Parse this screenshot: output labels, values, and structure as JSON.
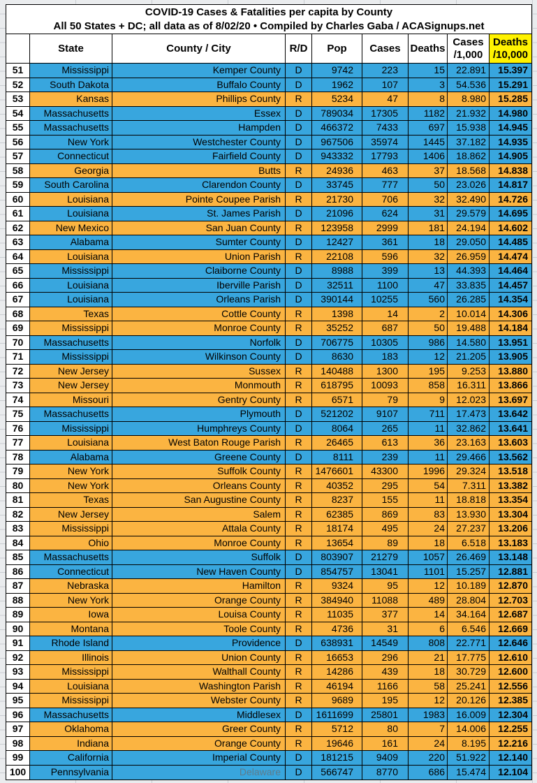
{
  "title": {
    "line1": "COVID-19 Cases & Fatalities per capita by County",
    "line2": "All 50 States + DC; all data as of 8/02/20  • Compiled by Charles Gaba / ACASignups.net"
  },
  "header": {
    "rank": "",
    "state": "State",
    "county": "County / City",
    "rd": "R/D",
    "pop": "Pop",
    "cases": "Cases",
    "cases_rate_line1": "Cases",
    "cases_rate_line2": "/1,000",
    "deaths": "Deaths",
    "deaths_rate_line1": "Deaths",
    "deaths_rate_line2": "/10,000"
  },
  "colors": {
    "democrat_row": "#38A6DE",
    "republican_row": "#FBB441",
    "header_highlight": "#FFF200",
    "muted_county_text": "#5E7B8B"
  },
  "chart_data": {
    "type": "table",
    "title": "COVID-19 Cases & Fatalities per capita by County",
    "subtitle": "All 50 States + DC; all data as of 8/02/20 • Compiled by Charles Gaba / ACASignups.net",
    "columns": [
      "Rank",
      "State",
      "County / City",
      "R/D",
      "Pop",
      "Cases",
      "Deaths",
      "Cases /1,000",
      "Deaths /10,000"
    ],
    "rows": [
      {
        "rank": 51,
        "state": "Mississippi",
        "county": "Kemper County",
        "party": "D",
        "pop": 9742,
        "cases": 223,
        "deaths": 15,
        "cases_per_1000": "22.891",
        "deaths_per_10000": "15.397"
      },
      {
        "rank": 52,
        "state": "South Dakota",
        "county": "Buffalo County",
        "party": "D",
        "pop": 1962,
        "cases": 107,
        "deaths": 3,
        "cases_per_1000": "54.536",
        "deaths_per_10000": "15.291"
      },
      {
        "rank": 53,
        "state": "Kansas",
        "county": "Phillips County",
        "party": "R",
        "pop": 5234,
        "cases": 47,
        "deaths": 8,
        "cases_per_1000": "8.980",
        "deaths_per_10000": "15.285"
      },
      {
        "rank": 54,
        "state": "Massachusetts",
        "county": "Essex",
        "party": "D",
        "pop": 789034,
        "cases": 17305,
        "deaths": 1182,
        "cases_per_1000": "21.932",
        "deaths_per_10000": "14.980"
      },
      {
        "rank": 55,
        "state": "Massachusetts",
        "county": "Hampden",
        "party": "D",
        "pop": 466372,
        "cases": 7433,
        "deaths": 697,
        "cases_per_1000": "15.938",
        "deaths_per_10000": "14.945"
      },
      {
        "rank": 56,
        "state": "New York",
        "county": "Westchester County",
        "party": "D",
        "pop": 967506,
        "cases": 35974,
        "deaths": 1445,
        "cases_per_1000": "37.182",
        "deaths_per_10000": "14.935"
      },
      {
        "rank": 57,
        "state": "Connecticut",
        "county": "Fairfield County",
        "party": "D",
        "pop": 943332,
        "cases": 17793,
        "deaths": 1406,
        "cases_per_1000": "18.862",
        "deaths_per_10000": "14.905"
      },
      {
        "rank": 58,
        "state": "Georgia",
        "county": "Butts",
        "party": "R",
        "pop": 24936,
        "cases": 463,
        "deaths": 37,
        "cases_per_1000": "18.568",
        "deaths_per_10000": "14.838"
      },
      {
        "rank": 59,
        "state": "South Carolina",
        "county": "Clarendon County",
        "party": "D",
        "pop": 33745,
        "cases": 777,
        "deaths": 50,
        "cases_per_1000": "23.026",
        "deaths_per_10000": "14.817"
      },
      {
        "rank": 60,
        "state": "Louisiana",
        "county": "Pointe Coupee Parish",
        "party": "R",
        "pop": 21730,
        "cases": 706,
        "deaths": 32,
        "cases_per_1000": "32.490",
        "deaths_per_10000": "14.726"
      },
      {
        "rank": 61,
        "state": "Louisiana",
        "county": "St. James Parish",
        "party": "D",
        "pop": 21096,
        "cases": 624,
        "deaths": 31,
        "cases_per_1000": "29.579",
        "deaths_per_10000": "14.695"
      },
      {
        "rank": 62,
        "state": "New Mexico",
        "county": "San Juan County",
        "party": "R",
        "pop": 123958,
        "cases": 2999,
        "deaths": 181,
        "cases_per_1000": "24.194",
        "deaths_per_10000": "14.602"
      },
      {
        "rank": 63,
        "state": "Alabama",
        "county": "Sumter County",
        "party": "D",
        "pop": 12427,
        "cases": 361,
        "deaths": 18,
        "cases_per_1000": "29.050",
        "deaths_per_10000": "14.485"
      },
      {
        "rank": 64,
        "state": "Louisiana",
        "county": "Union Parish",
        "party": "R",
        "pop": 22108,
        "cases": 596,
        "deaths": 32,
        "cases_per_1000": "26.959",
        "deaths_per_10000": "14.474"
      },
      {
        "rank": 65,
        "state": "Mississippi",
        "county": "Claiborne County",
        "party": "D",
        "pop": 8988,
        "cases": 399,
        "deaths": 13,
        "cases_per_1000": "44.393",
        "deaths_per_10000": "14.464"
      },
      {
        "rank": 66,
        "state": "Louisiana",
        "county": "Iberville Parish",
        "party": "D",
        "pop": 32511,
        "cases": 1100,
        "deaths": 47,
        "cases_per_1000": "33.835",
        "deaths_per_10000": "14.457"
      },
      {
        "rank": 67,
        "state": "Louisiana",
        "county": "Orleans Parish",
        "party": "D",
        "pop": 390144,
        "cases": 10255,
        "deaths": 560,
        "cases_per_1000": "26.285",
        "deaths_per_10000": "14.354"
      },
      {
        "rank": 68,
        "state": "Texas",
        "county": "Cottle County",
        "party": "R",
        "pop": 1398,
        "cases": 14,
        "deaths": 2,
        "cases_per_1000": "10.014",
        "deaths_per_10000": "14.306"
      },
      {
        "rank": 69,
        "state": "Mississippi",
        "county": "Monroe County",
        "party": "R",
        "pop": 35252,
        "cases": 687,
        "deaths": 50,
        "cases_per_1000": "19.488",
        "deaths_per_10000": "14.184"
      },
      {
        "rank": 70,
        "state": "Massachusetts",
        "county": "Norfolk",
        "party": "D",
        "pop": 706775,
        "cases": 10305,
        "deaths": 986,
        "cases_per_1000": "14.580",
        "deaths_per_10000": "13.951"
      },
      {
        "rank": 71,
        "state": "Mississippi",
        "county": "Wilkinson County",
        "party": "D",
        "pop": 8630,
        "cases": 183,
        "deaths": 12,
        "cases_per_1000": "21.205",
        "deaths_per_10000": "13.905"
      },
      {
        "rank": 72,
        "state": "New Jersey",
        "county": "Sussex",
        "party": "R",
        "pop": 140488,
        "cases": 1300,
        "deaths": 195,
        "cases_per_1000": "9.253",
        "deaths_per_10000": "13.880"
      },
      {
        "rank": 73,
        "state": "New Jersey",
        "county": "Monmouth",
        "party": "R",
        "pop": 618795,
        "cases": 10093,
        "deaths": 858,
        "cases_per_1000": "16.311",
        "deaths_per_10000": "13.866"
      },
      {
        "rank": 74,
        "state": "Missouri",
        "county": "Gentry County",
        "party": "R",
        "pop": 6571,
        "cases": 79,
        "deaths": 9,
        "cases_per_1000": "12.023",
        "deaths_per_10000": "13.697"
      },
      {
        "rank": 75,
        "state": "Massachusetts",
        "county": "Plymouth",
        "party": "D",
        "pop": 521202,
        "cases": 9107,
        "deaths": 711,
        "cases_per_1000": "17.473",
        "deaths_per_10000": "13.642"
      },
      {
        "rank": 76,
        "state": "Mississippi",
        "county": "Humphreys County",
        "party": "D",
        "pop": 8064,
        "cases": 265,
        "deaths": 11,
        "cases_per_1000": "32.862",
        "deaths_per_10000": "13.641"
      },
      {
        "rank": 77,
        "state": "Louisiana",
        "county": "West Baton Rouge Parish",
        "party": "R",
        "pop": 26465,
        "cases": 613,
        "deaths": 36,
        "cases_per_1000": "23.163",
        "deaths_per_10000": "13.603"
      },
      {
        "rank": 78,
        "state": "Alabama",
        "county": "Greene County",
        "party": "D",
        "pop": 8111,
        "cases": 239,
        "deaths": 11,
        "cases_per_1000": "29.466",
        "deaths_per_10000": "13.562"
      },
      {
        "rank": 79,
        "state": "New York",
        "county": "Suffolk County",
        "party": "R",
        "pop": 1476601,
        "cases": 43300,
        "deaths": 1996,
        "cases_per_1000": "29.324",
        "deaths_per_10000": "13.518"
      },
      {
        "rank": 80,
        "state": "New York",
        "county": "Orleans County",
        "party": "R",
        "pop": 40352,
        "cases": 295,
        "deaths": 54,
        "cases_per_1000": "7.311",
        "deaths_per_10000": "13.382"
      },
      {
        "rank": 81,
        "state": "Texas",
        "county": "San Augustine County",
        "party": "R",
        "pop": 8237,
        "cases": 155,
        "deaths": 11,
        "cases_per_1000": "18.818",
        "deaths_per_10000": "13.354"
      },
      {
        "rank": 82,
        "state": "New Jersey",
        "county": "Salem",
        "party": "R",
        "pop": 62385,
        "cases": 869,
        "deaths": 83,
        "cases_per_1000": "13.930",
        "deaths_per_10000": "13.304"
      },
      {
        "rank": 83,
        "state": "Mississippi",
        "county": "Attala County",
        "party": "R",
        "pop": 18174,
        "cases": 495,
        "deaths": 24,
        "cases_per_1000": "27.237",
        "deaths_per_10000": "13.206"
      },
      {
        "rank": 84,
        "state": "Ohio",
        "county": "Monroe County",
        "party": "R",
        "pop": 13654,
        "cases": 89,
        "deaths": 18,
        "cases_per_1000": "6.518",
        "deaths_per_10000": "13.183"
      },
      {
        "rank": 85,
        "state": "Massachusetts",
        "county": "Suffolk",
        "party": "D",
        "pop": 803907,
        "cases": 21279,
        "deaths": 1057,
        "cases_per_1000": "26.469",
        "deaths_per_10000": "13.148"
      },
      {
        "rank": 86,
        "state": "Connecticut",
        "county": "New Haven County",
        "party": "D",
        "pop": 854757,
        "cases": 13041,
        "deaths": 1101,
        "cases_per_1000": "15.257",
        "deaths_per_10000": "12.881"
      },
      {
        "rank": 87,
        "state": "Nebraska",
        "county": "Hamilton",
        "party": "R",
        "pop": 9324,
        "cases": 95,
        "deaths": 12,
        "cases_per_1000": "10.189",
        "deaths_per_10000": "12.870"
      },
      {
        "rank": 88,
        "state": "New York",
        "county": "Orange County",
        "party": "R",
        "pop": 384940,
        "cases": 11088,
        "deaths": 489,
        "cases_per_1000": "28.804",
        "deaths_per_10000": "12.703"
      },
      {
        "rank": 89,
        "state": "Iowa",
        "county": "Louisa County",
        "party": "R",
        "pop": 11035,
        "cases": 377,
        "deaths": 14,
        "cases_per_1000": "34.164",
        "deaths_per_10000": "12.687"
      },
      {
        "rank": 90,
        "state": "Montana",
        "county": "Toole County",
        "party": "R",
        "pop": 4736,
        "cases": 31,
        "deaths": 6,
        "cases_per_1000": "6.546",
        "deaths_per_10000": "12.669"
      },
      {
        "rank": 91,
        "state": "Rhode Island",
        "county": "Providence",
        "party": "D",
        "pop": 638931,
        "cases": 14549,
        "deaths": 808,
        "cases_per_1000": "22.771",
        "deaths_per_10000": "12.646"
      },
      {
        "rank": 92,
        "state": "Illinois",
        "county": "Union County",
        "party": "R",
        "pop": 16653,
        "cases": 296,
        "deaths": 21,
        "cases_per_1000": "17.775",
        "deaths_per_10000": "12.610"
      },
      {
        "rank": 93,
        "state": "Mississippi",
        "county": "Walthall County",
        "party": "R",
        "pop": 14286,
        "cases": 439,
        "deaths": 18,
        "cases_per_1000": "30.729",
        "deaths_per_10000": "12.600"
      },
      {
        "rank": 94,
        "state": "Louisiana",
        "county": "Washington Parish",
        "party": "R",
        "pop": 46194,
        "cases": 1166,
        "deaths": 58,
        "cases_per_1000": "25.241",
        "deaths_per_10000": "12.556"
      },
      {
        "rank": 95,
        "state": "Mississippi",
        "county": "Webster County",
        "party": "R",
        "pop": 9689,
        "cases": 195,
        "deaths": 12,
        "cases_per_1000": "20.126",
        "deaths_per_10000": "12.385"
      },
      {
        "rank": 96,
        "state": "Massachusetts",
        "county": "Middlesex",
        "party": "D",
        "pop": 1611699,
        "cases": 25801,
        "deaths": 1983,
        "cases_per_1000": "16.009",
        "deaths_per_10000": "12.304"
      },
      {
        "rank": 97,
        "state": "Oklahoma",
        "county": "Greer County",
        "party": "R",
        "pop": 5712,
        "cases": 80,
        "deaths": 7,
        "cases_per_1000": "14.006",
        "deaths_per_10000": "12.255"
      },
      {
        "rank": 98,
        "state": "Indiana",
        "county": "Orange County",
        "party": "R",
        "pop": 19646,
        "cases": 161,
        "deaths": 24,
        "cases_per_1000": "8.195",
        "deaths_per_10000": "12.216"
      },
      {
        "rank": 99,
        "state": "California",
        "county": "Imperial County",
        "party": "D",
        "pop": 181215,
        "cases": 9409,
        "deaths": 220,
        "cases_per_1000": "51.922",
        "deaths_per_10000": "12.140"
      },
      {
        "rank": 100,
        "state": "Pennsylvania",
        "county": "Delaware",
        "party": "D",
        "pop": 566747,
        "cases": 8770,
        "deaths": 686,
        "cases_per_1000": "15.474",
        "deaths_per_10000": "12.104",
        "county_muted": true
      }
    ]
  }
}
